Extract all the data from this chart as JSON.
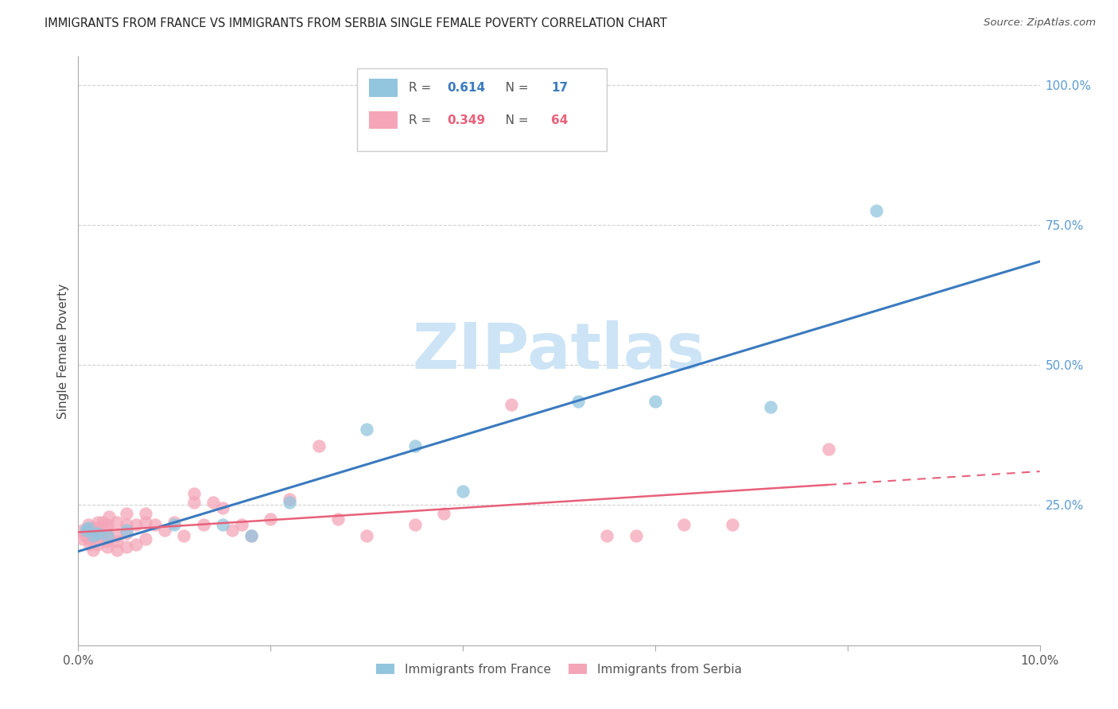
{
  "title": "IMMIGRANTS FROM FRANCE VS IMMIGRANTS FROM SERBIA SINGLE FEMALE POVERTY CORRELATION CHART",
  "source": "Source: ZipAtlas.com",
  "ylabel": "Single Female Poverty",
  "ylabel_right_labels": [
    "100.0%",
    "75.0%",
    "50.0%",
    "25.0%"
  ],
  "ylabel_right_values": [
    1.0,
    0.75,
    0.5,
    0.25
  ],
  "xlim": [
    0.0,
    0.1
  ],
  "ylim": [
    0.0,
    1.05
  ],
  "france_R": 0.614,
  "france_N": 17,
  "serbia_R": 0.349,
  "serbia_N": 64,
  "france_color": "#92c5de",
  "serbia_color": "#f4a6b8",
  "france_line_color": "#3a7abf",
  "serbia_line_color": "#e8607a",
  "watermark_color": "#cce4f5",
  "france_x": [
    0.0008,
    0.001,
    0.0015,
    0.002,
    0.003,
    0.005,
    0.01,
    0.015,
    0.018,
    0.022,
    0.03,
    0.035,
    0.04,
    0.052,
    0.06,
    0.072,
    0.083
  ],
  "france_y": [
    0.205,
    0.21,
    0.195,
    0.2,
    0.195,
    0.205,
    0.215,
    0.215,
    0.195,
    0.255,
    0.385,
    0.355,
    0.275,
    0.435,
    0.435,
    0.425,
    0.775
  ],
  "serbia_x": [
    0.0005,
    0.0005,
    0.0007,
    0.0008,
    0.001,
    0.001,
    0.001,
    0.0012,
    0.0013,
    0.0015,
    0.0015,
    0.0015,
    0.002,
    0.002,
    0.002,
    0.002,
    0.002,
    0.0022,
    0.0025,
    0.003,
    0.003,
    0.003,
    0.003,
    0.003,
    0.003,
    0.0032,
    0.004,
    0.004,
    0.004,
    0.004,
    0.005,
    0.005,
    0.005,
    0.005,
    0.006,
    0.006,
    0.007,
    0.007,
    0.007,
    0.008,
    0.009,
    0.01,
    0.011,
    0.012,
    0.012,
    0.013,
    0.014,
    0.015,
    0.016,
    0.017,
    0.018,
    0.02,
    0.022,
    0.025,
    0.027,
    0.03,
    0.035,
    0.038,
    0.045,
    0.055,
    0.058,
    0.063,
    0.068,
    0.078
  ],
  "serbia_y": [
    0.19,
    0.205,
    0.195,
    0.2,
    0.19,
    0.205,
    0.215,
    0.18,
    0.19,
    0.17,
    0.195,
    0.21,
    0.18,
    0.19,
    0.2,
    0.21,
    0.22,
    0.21,
    0.22,
    0.175,
    0.185,
    0.19,
    0.195,
    0.21,
    0.215,
    0.23,
    0.17,
    0.185,
    0.195,
    0.22,
    0.175,
    0.2,
    0.215,
    0.235,
    0.18,
    0.215,
    0.19,
    0.22,
    0.235,
    0.215,
    0.205,
    0.22,
    0.195,
    0.255,
    0.27,
    0.215,
    0.255,
    0.245,
    0.205,
    0.215,
    0.195,
    0.225,
    0.26,
    0.355,
    0.225,
    0.195,
    0.215,
    0.235,
    0.43,
    0.195,
    0.195,
    0.215,
    0.215,
    0.35
  ]
}
